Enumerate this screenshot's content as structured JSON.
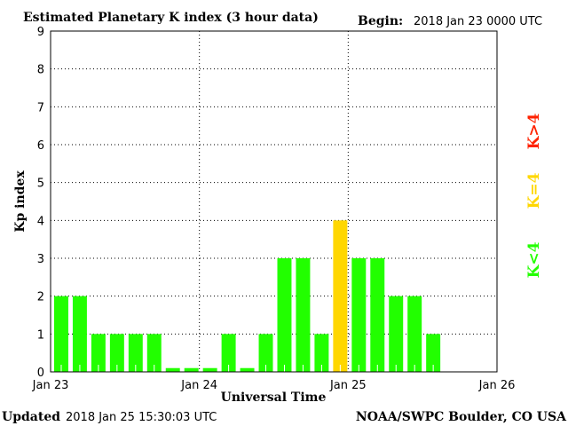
{
  "chart_data": {
    "type": "bar",
    "title": "Estimated Planetary K index (3 hour data)",
    "begin_label": "Begin:",
    "begin_value": "2018 Jan 23 0000 UTC",
    "xlabel": "Universal Time",
    "ylabel": "Kp index",
    "ylim": [
      0,
      9
    ],
    "yticks": [
      "0",
      "1",
      "2",
      "3",
      "4",
      "5",
      "6",
      "7",
      "8",
      "9"
    ],
    "xticks": [
      "Jan 23",
      "Jan 24",
      "Jan 25",
      "Jan 26"
    ],
    "interval_hours": 3,
    "values": [
      2,
      2,
      1,
      1,
      1,
      1,
      0,
      0,
      0,
      1,
      0,
      1,
      3,
      3,
      1,
      4,
      3,
      3,
      2,
      2,
      1
    ],
    "colors": {
      "low": "#22ff00",
      "mid": "#ffd700",
      "high": "#ff2200"
    },
    "legend": {
      "high": "K>4",
      "mid": "K=4",
      "low": "K<4"
    },
    "grid": true
  },
  "footer": {
    "updated_label": "Updated",
    "updated_value": "2018 Jan 25 15:30:03 UTC",
    "source": "NOAA/SWPC Boulder, CO USA"
  }
}
